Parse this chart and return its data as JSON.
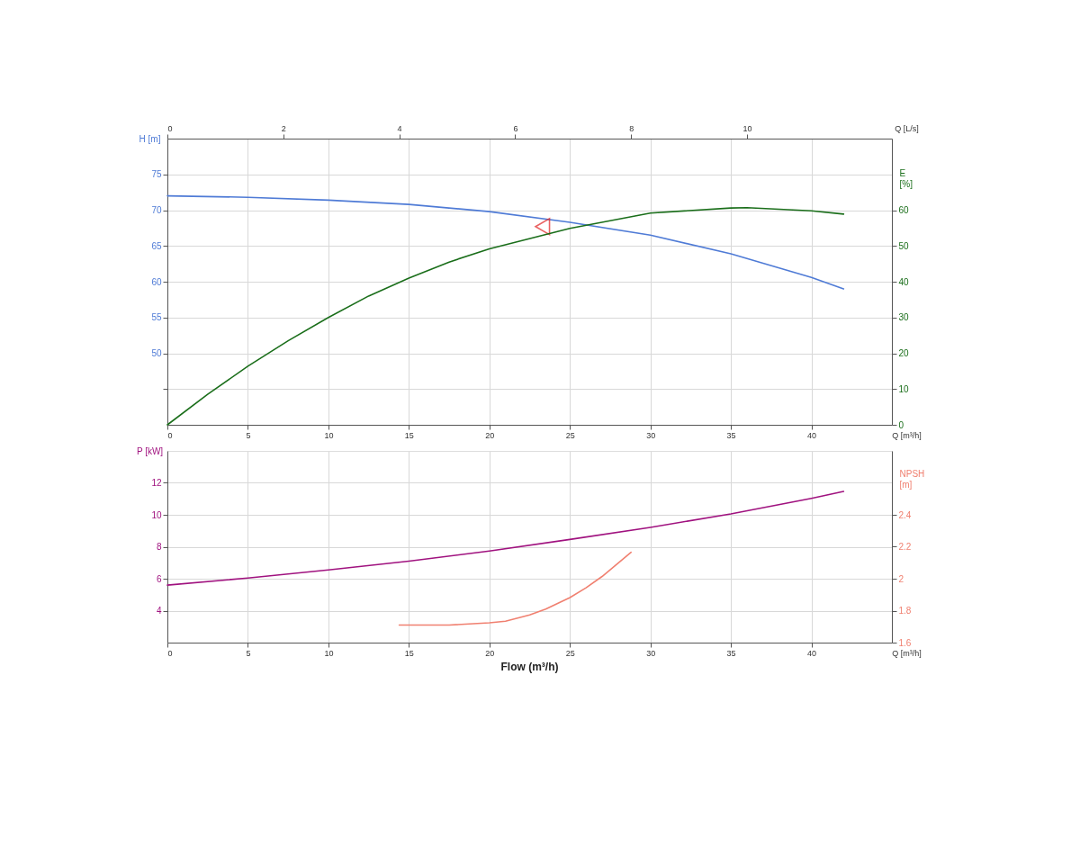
{
  "chart_data": [
    {
      "type": "line",
      "xlabel": "Q [m³/h]",
      "x2label": "Q [L/s]",
      "ylabel": "H [m]",
      "y2label": "E [%]",
      "xlim": [
        0,
        45
      ],
      "xticks": [
        0,
        5,
        10,
        15,
        20,
        25,
        30,
        35,
        40
      ],
      "x2lim": [
        0,
        12.5
      ],
      "x2ticks": [
        0,
        2,
        4,
        6,
        8,
        10
      ],
      "ylim": [
        40,
        80
      ],
      "yticks": [
        {
          "value": 45,
          "label": null
        },
        50,
        55,
        60,
        65,
        70,
        75
      ],
      "y2lim": [
        0,
        80
      ],
      "y2ticks": [
        0,
        10,
        20,
        30,
        40,
        50,
        60
      ],
      "grid": true,
      "series": [
        {
          "color": "#4f7bd6",
          "axis": "y",
          "x": [
            0,
            5,
            10,
            15,
            20,
            25,
            30,
            35,
            40,
            42
          ],
          "values": [
            72.0,
            71.8,
            71.4,
            70.8,
            69.8,
            68.3,
            66.5,
            63.9,
            60.6,
            59.0
          ]
        },
        {
          "color": "#e02020",
          "axis": "y",
          "type": "scatter",
          "marker": "triangle",
          "x": [
            23.3
          ],
          "values": [
            67.7
          ]
        },
        {
          "color": "#1a6e1a",
          "axis": "y2",
          "x": [
            0,
            2.5,
            5,
            7.5,
            10,
            12.5,
            15,
            17.5,
            20,
            25,
            30,
            35,
            36,
            40,
            42
          ],
          "values": [
            0,
            8.5,
            16.4,
            23.5,
            30.0,
            36.0,
            41.0,
            45.5,
            49.2,
            54.9,
            59.2,
            60.6,
            60.7,
            59.8,
            58.9
          ]
        }
      ]
    },
    {
      "type": "line",
      "xlabel": "Q [m³/h]",
      "ylabel": "P [kW]",
      "y2label": "NPSH [m]",
      "annotations": [
        "Flow (m³/h)"
      ],
      "xlim": [
        0,
        45
      ],
      "xticks": [
        0,
        5,
        10,
        15,
        20,
        25,
        30,
        35,
        40
      ],
      "ylim": [
        2,
        14
      ],
      "yticks": [
        4,
        6,
        8,
        10,
        12
      ],
      "y2lim": [
        1.6,
        2.8
      ],
      "y2ticks": [
        1.6,
        1.8,
        2,
        2.2,
        2.4
      ],
      "grid": true,
      "series": [
        {
          "color": "#a0127f",
          "axis": "y",
          "x": [
            0,
            5,
            10,
            15,
            20,
            25,
            30,
            35,
            40,
            42
          ],
          "values": [
            5.6,
            6.04,
            6.55,
            7.1,
            7.73,
            8.46,
            9.21,
            10.06,
            11.03,
            11.46
          ]
        },
        {
          "color": "#f08070",
          "axis": "y2",
          "x": [
            14.4,
            17.5,
            20,
            21,
            22.5,
            23.5,
            25,
            26,
            27,
            28.8
          ],
          "values": [
            1.71,
            1.71,
            1.724,
            1.734,
            1.773,
            1.81,
            1.882,
            1.943,
            2.014,
            2.165
          ]
        }
      ]
    }
  ]
}
